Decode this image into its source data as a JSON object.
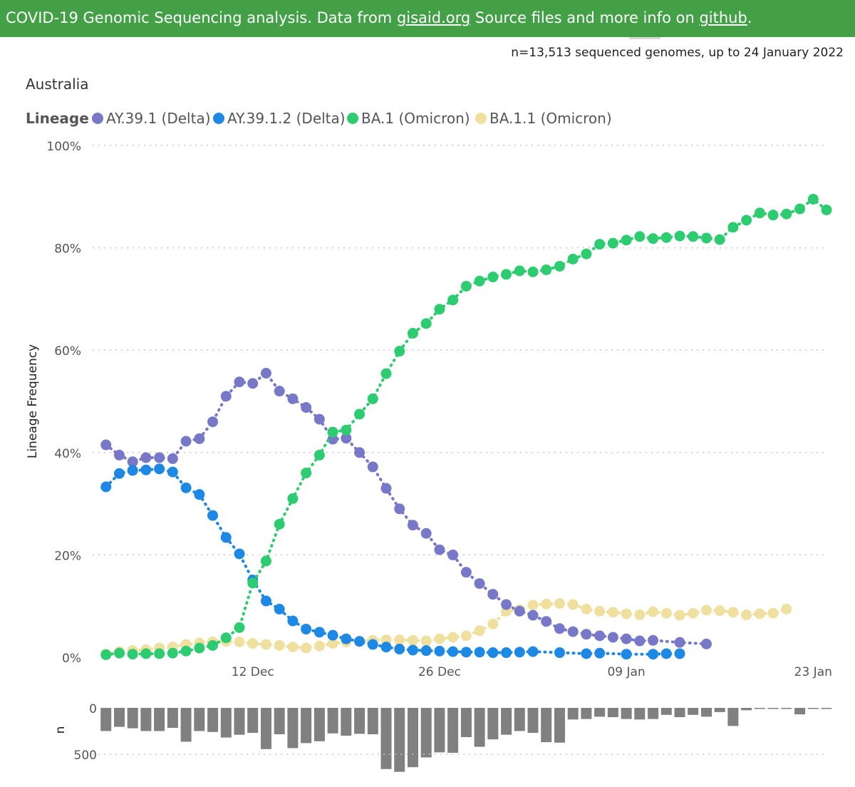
{
  "banner": {
    "text_before": "COVID-19 Genomic Sequencing analysis. Data from ",
    "link1": "gisaid.org",
    "text_middle": " Source files and more info on ",
    "link2": "github",
    "text_after": "."
  },
  "count_note": "n=13,513 sequenced genomes, up to 24 January 2022",
  "colors": {
    "banner": "#43a047",
    "bar": "#808080",
    "grid": "#c8c8c8"
  },
  "chart_data": [
    {
      "type": "line",
      "title": "Australia",
      "legend_title": "Lineage",
      "legend_placement": "top-left",
      "ylabel": "Lineage Frequency",
      "y_ticks": [
        "0%",
        "20%",
        "40%",
        "60%",
        "80%",
        "100%"
      ],
      "x_ticks": [
        {
          "date": "2021-12-12",
          "label": "12 Dec"
        },
        {
          "date": "2021-12-26",
          "label": "26 Dec"
        },
        {
          "date": "2022-01-09",
          "label": "09 Jan"
        },
        {
          "date": "2022-01-23",
          "label": "23 Jan"
        }
      ],
      "xlim": [
        "2021-11-30",
        "2022-01-24"
      ],
      "ylim": [
        0,
        100
      ],
      "grid": true,
      "series": [
        {
          "name": "AY.39.1 (Delta)",
          "color": "#7878c8",
          "x": [
            "2021-12-01",
            "2021-12-02",
            "2021-12-03",
            "2021-12-04",
            "2021-12-05",
            "2021-12-06",
            "2021-12-07",
            "2021-12-08",
            "2021-12-09",
            "2021-12-10",
            "2021-12-11",
            "2021-12-12",
            "2021-12-13",
            "2021-12-14",
            "2021-12-15",
            "2021-12-16",
            "2021-12-17",
            "2021-12-18",
            "2021-12-19",
            "2021-12-20",
            "2021-12-21",
            "2021-12-22",
            "2021-12-23",
            "2021-12-24",
            "2021-12-25",
            "2021-12-26",
            "2021-12-27",
            "2021-12-28",
            "2021-12-29",
            "2021-12-30",
            "2021-12-31",
            "2022-01-01",
            "2022-01-02",
            "2022-01-03",
            "2022-01-04",
            "2022-01-05",
            "2022-01-06",
            "2022-01-07",
            "2022-01-08",
            "2022-01-09",
            "2022-01-10",
            "2022-01-11",
            "2022-01-13",
            "2022-01-15"
          ],
          "values": [
            41.5,
            39.5,
            38.2,
            39.0,
            39.0,
            38.8,
            42.2,
            42.7,
            46.0,
            51.0,
            53.8,
            53.5,
            55.5,
            52.0,
            50.5,
            48.8,
            46.5,
            42.6,
            42.8,
            40.0,
            37.2,
            33.0,
            29.0,
            25.8,
            24.2,
            21.0,
            20.0,
            16.6,
            14.4,
            12.3,
            10.3,
            9.0,
            8.2,
            7.0,
            5.6,
            5.0,
            4.5,
            4.2,
            3.9,
            3.6,
            3.2,
            3.3,
            2.9,
            2.6
          ]
        },
        {
          "name": "AY.39.1.2 (Delta)",
          "color": "#1e88e5",
          "x": [
            "2021-12-01",
            "2021-12-02",
            "2021-12-03",
            "2021-12-04",
            "2021-12-05",
            "2021-12-06",
            "2021-12-07",
            "2021-12-08",
            "2021-12-09",
            "2021-12-10",
            "2021-12-11",
            "2021-12-12",
            "2021-12-13",
            "2021-12-14",
            "2021-12-15",
            "2021-12-16",
            "2021-12-17",
            "2021-12-18",
            "2021-12-19",
            "2021-12-20",
            "2021-12-21",
            "2021-12-22",
            "2021-12-23",
            "2021-12-24",
            "2021-12-25",
            "2021-12-26",
            "2021-12-27",
            "2021-12-28",
            "2021-12-29",
            "2021-12-30",
            "2021-12-31",
            "2022-01-01",
            "2022-01-02",
            "2022-01-04",
            "2022-01-06",
            "2022-01-07",
            "2022-01-09",
            "2022-01-11",
            "2022-01-12",
            "2022-01-13"
          ],
          "values": [
            33.3,
            35.9,
            36.5,
            36.6,
            36.8,
            36.2,
            33.1,
            31.8,
            27.7,
            23.4,
            20.2,
            15.1,
            11.0,
            9.4,
            7.1,
            5.5,
            4.9,
            4.3,
            3.6,
            3.1,
            2.5,
            2.0,
            1.6,
            1.4,
            1.3,
            1.2,
            1.1,
            1.0,
            1.0,
            0.9,
            0.9,
            1.0,
            1.1,
            0.9,
            0.7,
            0.8,
            0.6,
            0.6,
            0.7,
            0.7
          ]
        },
        {
          "name": "BA.1 (Omicron)",
          "color": "#2ecc71",
          "x": [
            "2021-12-01",
            "2021-12-02",
            "2021-12-03",
            "2021-12-04",
            "2021-12-05",
            "2021-12-06",
            "2021-12-07",
            "2021-12-08",
            "2021-12-09",
            "2021-12-10",
            "2021-12-11",
            "2021-12-12",
            "2021-12-13",
            "2021-12-14",
            "2021-12-15",
            "2021-12-16",
            "2021-12-17",
            "2021-12-18",
            "2021-12-19",
            "2021-12-20",
            "2021-12-21",
            "2021-12-22",
            "2021-12-23",
            "2021-12-24",
            "2021-12-25",
            "2021-12-26",
            "2021-12-27",
            "2021-12-28",
            "2021-12-29",
            "2021-12-30",
            "2021-12-31",
            "2022-01-01",
            "2022-01-02",
            "2022-01-03",
            "2022-01-04",
            "2022-01-05",
            "2022-01-06",
            "2022-01-07",
            "2022-01-08",
            "2022-01-09",
            "2022-01-10",
            "2022-01-11",
            "2022-01-12",
            "2022-01-13",
            "2022-01-14",
            "2022-01-15",
            "2022-01-16",
            "2022-01-17",
            "2022-01-18",
            "2022-01-19",
            "2022-01-20",
            "2022-01-21",
            "2022-01-22",
            "2022-01-23",
            "2022-01-24"
          ],
          "values": [
            0.5,
            0.8,
            0.6,
            0.7,
            0.7,
            0.8,
            1.2,
            1.8,
            2.3,
            3.8,
            5.8,
            14.5,
            18.8,
            26.0,
            31.0,
            36.0,
            39.5,
            44.0,
            44.4,
            47.5,
            50.5,
            55.4,
            59.8,
            63.3,
            65.2,
            68.0,
            69.8,
            72.5,
            73.5,
            74.3,
            74.8,
            75.5,
            75.3,
            75.7,
            76.4,
            77.8,
            78.8,
            80.7,
            80.9,
            81.5,
            82.2,
            81.8,
            82.0,
            82.3,
            82.2,
            81.9,
            81.6,
            84.0,
            85.4,
            86.8,
            86.4,
            86.6,
            87.6,
            89.5,
            87.4
          ]
        },
        {
          "name": "BA.1.1 (Omicron)",
          "color": "#f0e0a0",
          "x": [
            "2021-12-01",
            "2021-12-02",
            "2021-12-03",
            "2021-12-04",
            "2021-12-05",
            "2021-12-06",
            "2021-12-07",
            "2021-12-08",
            "2021-12-09",
            "2021-12-10",
            "2021-12-11",
            "2021-12-12",
            "2021-12-13",
            "2021-12-14",
            "2021-12-15",
            "2021-12-16",
            "2021-12-17",
            "2021-12-18",
            "2021-12-19",
            "2021-12-20",
            "2021-12-21",
            "2021-12-22",
            "2021-12-23",
            "2021-12-24",
            "2021-12-25",
            "2021-12-26",
            "2021-12-27",
            "2021-12-28",
            "2021-12-29",
            "2021-12-30",
            "2021-12-31",
            "2022-01-01",
            "2022-01-02",
            "2022-01-03",
            "2022-01-04",
            "2022-01-05",
            "2022-01-06",
            "2022-01-07",
            "2022-01-08",
            "2022-01-09",
            "2022-01-10",
            "2022-01-11",
            "2022-01-12",
            "2022-01-13",
            "2022-01-14",
            "2022-01-15",
            "2022-01-16",
            "2022-01-17",
            "2022-01-18",
            "2022-01-19",
            "2022-01-20",
            "2022-01-21"
          ],
          "values": [
            0.6,
            1.1,
            1.3,
            1.5,
            1.8,
            2.0,
            2.5,
            2.8,
            3.0,
            3.1,
            3.0,
            2.7,
            2.5,
            2.3,
            2.0,
            1.8,
            2.2,
            2.7,
            3.0,
            3.2,
            3.3,
            3.4,
            3.4,
            3.3,
            3.2,
            3.6,
            3.9,
            4.2,
            5.2,
            6.5,
            9.0,
            9.3,
            10.2,
            10.4,
            10.5,
            10.3,
            9.4,
            9.0,
            8.8,
            8.5,
            8.3,
            8.9,
            8.6,
            8.2,
            8.6,
            9.2,
            9.1,
            8.8,
            8.3,
            8.5,
            8.6,
            9.4
          ]
        }
      ]
    },
    {
      "type": "bar",
      "ylabel": "n",
      "y_ticks": [
        "0",
        "500"
      ],
      "ylim": [
        0,
        700
      ],
      "y_inverted": true,
      "x": [
        "2021-12-01",
        "2021-12-02",
        "2021-12-03",
        "2021-12-04",
        "2021-12-05",
        "2021-12-06",
        "2021-12-07",
        "2021-12-08",
        "2021-12-09",
        "2021-12-10",
        "2021-12-11",
        "2021-12-12",
        "2021-12-13",
        "2021-12-14",
        "2021-12-15",
        "2021-12-16",
        "2021-12-17",
        "2021-12-18",
        "2021-12-19",
        "2021-12-20",
        "2021-12-21",
        "2021-12-22",
        "2021-12-23",
        "2021-12-24",
        "2021-12-25",
        "2021-12-26",
        "2021-12-27",
        "2021-12-28",
        "2021-12-29",
        "2021-12-30",
        "2021-12-31",
        "2022-01-01",
        "2022-01-02",
        "2022-01-03",
        "2022-01-04",
        "2022-01-05",
        "2022-01-06",
        "2022-01-07",
        "2022-01-08",
        "2022-01-09",
        "2022-01-10",
        "2022-01-11",
        "2022-01-12",
        "2022-01-13",
        "2022-01-14",
        "2022-01-15",
        "2022-01-16",
        "2022-01-17",
        "2022-01-18",
        "2022-01-19",
        "2022-01-20",
        "2022-01-21",
        "2022-01-22",
        "2022-01-23",
        "2022-01-24"
      ],
      "values": [
        250,
        205,
        220,
        250,
        250,
        215,
        365,
        250,
        260,
        320,
        290,
        270,
        445,
        285,
        435,
        380,
        360,
        275,
        300,
        280,
        285,
        660,
        690,
        640,
        535,
        480,
        485,
        315,
        420,
        340,
        290,
        250,
        270,
        370,
        375,
        125,
        120,
        95,
        100,
        120,
        125,
        120,
        75,
        100,
        75,
        95,
        45,
        195,
        25,
        10,
        5,
        5,
        70,
        5,
        5
      ]
    }
  ]
}
